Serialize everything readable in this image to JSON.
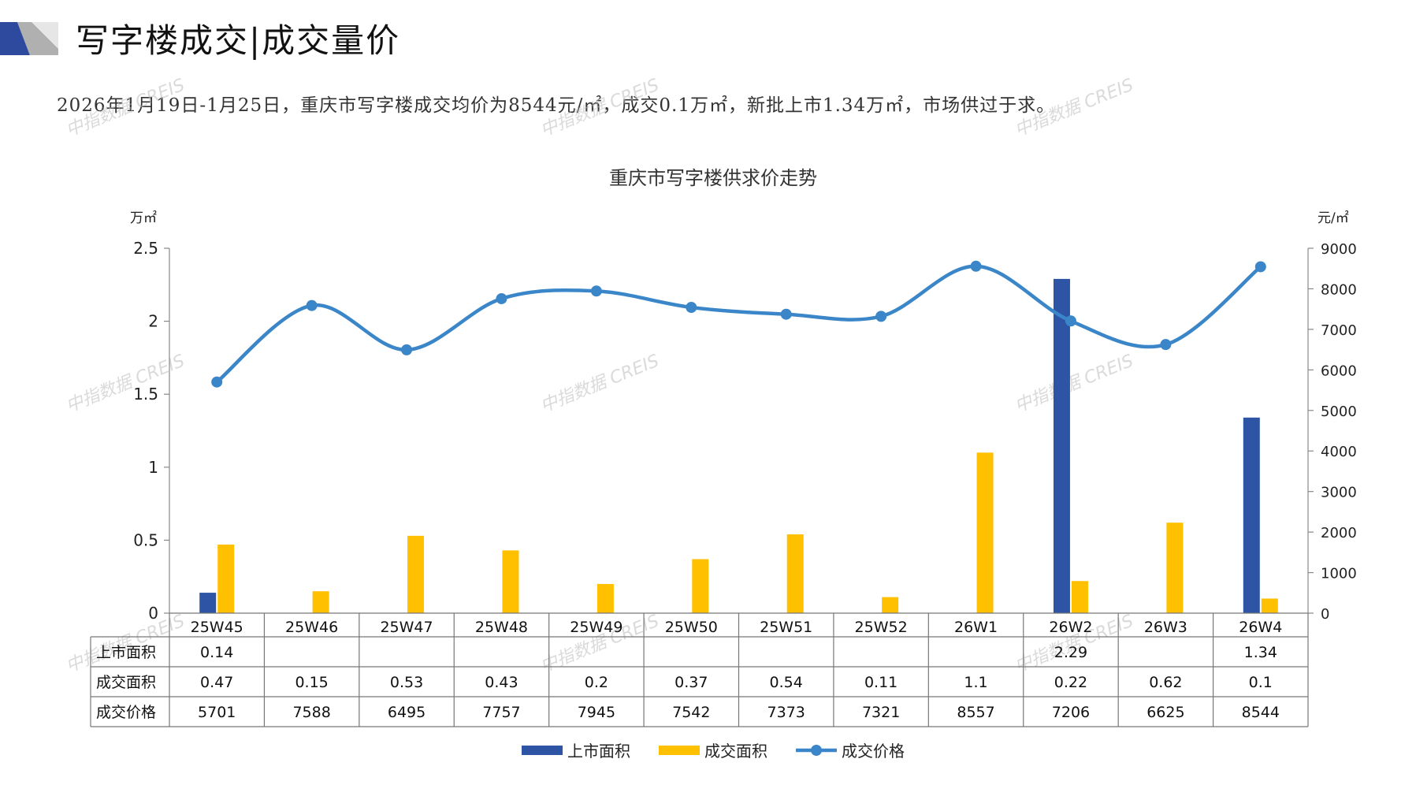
{
  "header": {
    "title": "写字楼成交|成交量价",
    "summary": "2026年1月19日-1月25日，重庆市写字楼成交均价为8544元/㎡，成交0.1万㎡，新批上市1.34万㎡，市场供过于求。"
  },
  "watermark_text": "中指数据 CREIS",
  "colors": {
    "supply": "#2E55A5",
    "deal_area": "#FFC000",
    "price": "#3A86C8",
    "logo_dark": "#2E4A9E",
    "logo_gray": "#B0B0B0"
  },
  "chart_data": {
    "type": "bar",
    "title": "重庆市写字楼供求价走势",
    "y_left_unit": "万㎡",
    "y_right_unit": "元/㎡",
    "y_left_range": [
      0,
      2.5
    ],
    "y_left_ticks": [
      "0",
      "0.5",
      "1",
      "1.5",
      "2",
      "2.5"
    ],
    "y_right_range": [
      0,
      9000
    ],
    "y_right_ticks": [
      "0",
      "1000",
      "2000",
      "3000",
      "4000",
      "5000",
      "6000",
      "7000",
      "8000",
      "9000"
    ],
    "categories": [
      "25W45",
      "25W46",
      "25W47",
      "25W48",
      "25W49",
      "25W50",
      "25W51",
      "25W52",
      "26W1",
      "26W2",
      "26W3",
      "26W4"
    ],
    "series": [
      {
        "name": "上市面积",
        "type": "bar",
        "axis": "left",
        "values": [
          0.14,
          null,
          null,
          null,
          null,
          null,
          null,
          null,
          null,
          2.29,
          null,
          1.34
        ],
        "labels": [
          "0.14",
          "",
          "",
          "",
          "",
          "",
          "",
          "",
          "",
          "2.29",
          "",
          "1.34"
        ]
      },
      {
        "name": "成交面积",
        "type": "bar",
        "axis": "left",
        "values": [
          0.47,
          0.15,
          0.53,
          0.43,
          0.2,
          0.37,
          0.54,
          0.11,
          1.1,
          0.22,
          0.62,
          0.1
        ],
        "labels": [
          "0.47",
          "0.15",
          "0.53",
          "0.43",
          "0.2",
          "0.37",
          "0.54",
          "0.11",
          "1.1",
          "0.22",
          "0.62",
          "0.1"
        ]
      },
      {
        "name": "成交价格",
        "type": "line",
        "axis": "right",
        "values": [
          5701,
          7588,
          6495,
          7757,
          7945,
          7542,
          7373,
          7321,
          8557,
          7206,
          6625,
          8544
        ],
        "labels": [
          "5701",
          "7588",
          "6495",
          "7757",
          "7945",
          "7542",
          "7373",
          "7321",
          "8557",
          "7206",
          "6625",
          "8544"
        ]
      }
    ],
    "legend_position": "bottom",
    "grid": false
  }
}
